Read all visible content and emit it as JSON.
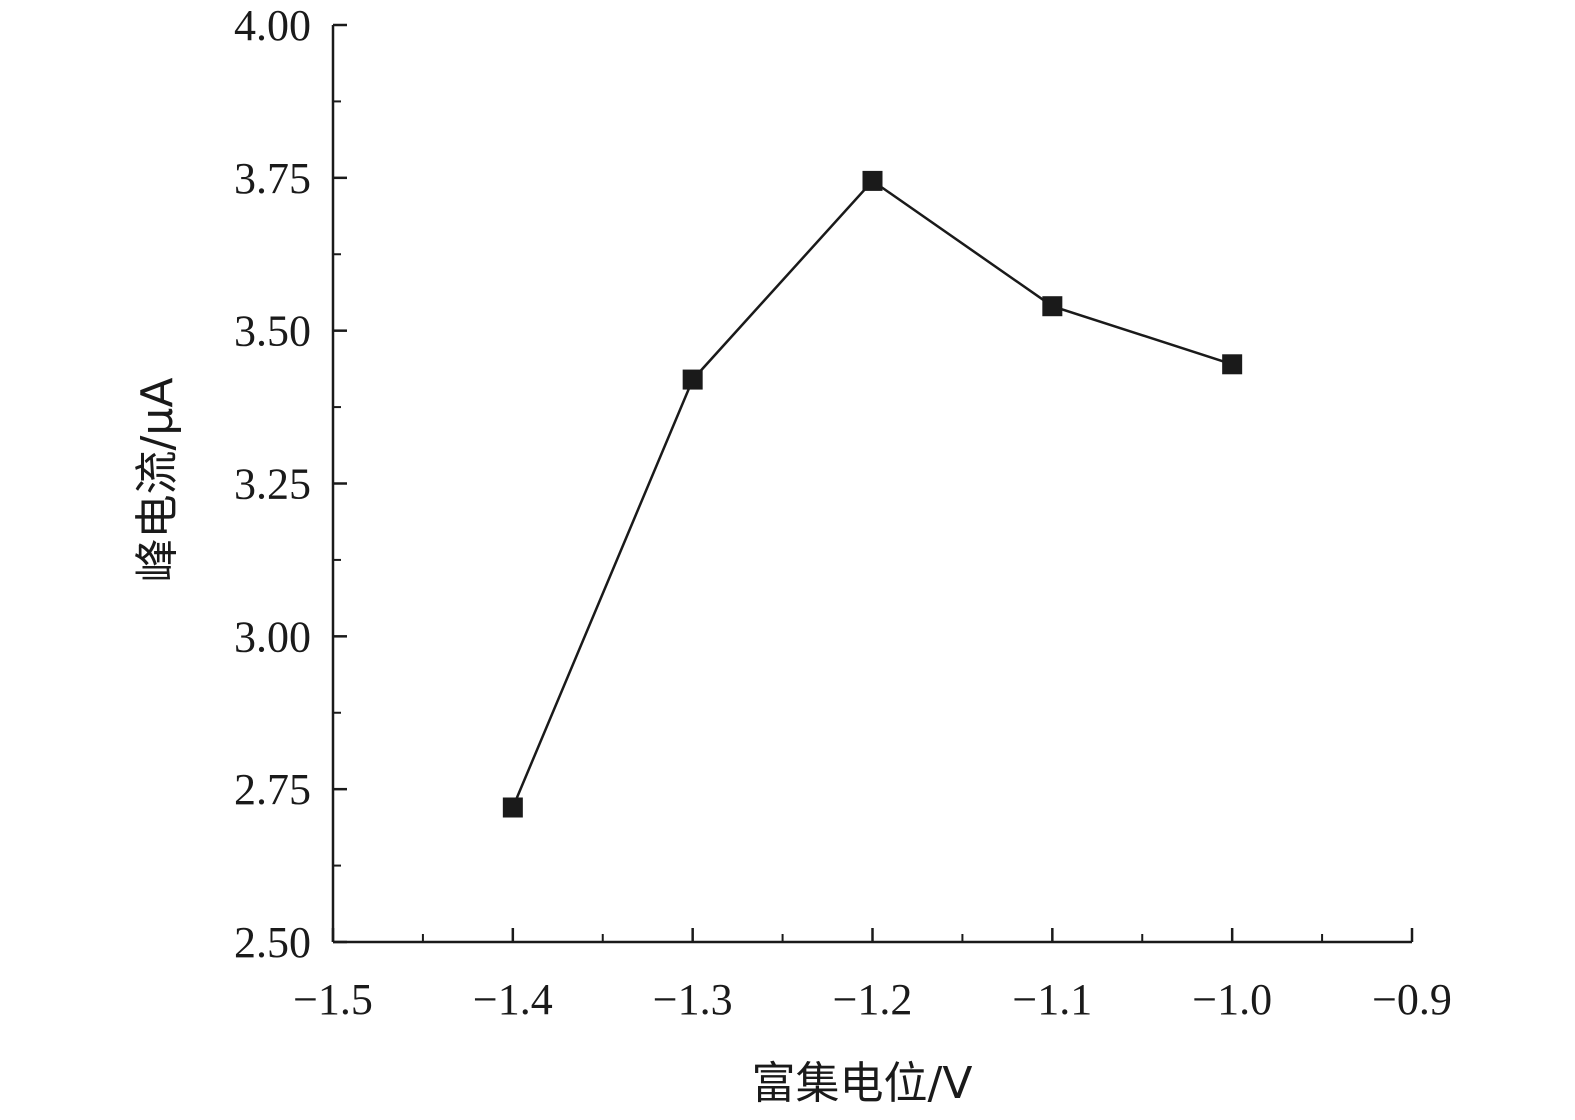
{
  "chart_data": {
    "type": "line",
    "title": "",
    "xlabel": "富集电位/V",
    "ylabel": "峰电流/μA",
    "xlim": [
      -1.5,
      -0.9
    ],
    "ylim": [
      2.5,
      4.0
    ],
    "x_ticks": [
      -1.5,
      -1.4,
      -1.3,
      -1.2,
      -1.1,
      -1.0,
      -0.9
    ],
    "x_tick_labels": [
      "−1.5",
      "−1.4",
      "−1.3",
      "−1.2",
      "−1.1",
      "−1.0",
      "−0.9"
    ],
    "y_ticks": [
      2.5,
      2.75,
      3.0,
      3.25,
      3.5,
      3.75,
      4.0
    ],
    "y_tick_labels": [
      "2.50",
      "2.75",
      "3.00",
      "3.25",
      "3.50",
      "3.75",
      "4.00"
    ],
    "x_minor_ticks": [
      -1.45,
      -1.35,
      -1.25,
      -1.15,
      -1.05,
      -0.95
    ],
    "y_minor_ticks": [
      2.625,
      2.875,
      3.125,
      3.375,
      3.625,
      3.875
    ],
    "grid": false,
    "legend": "none",
    "marker": "square",
    "colors": {
      "line": "#1a1a1a",
      "marker": "#1a1a1a",
      "axis": "#1a1a1a"
    },
    "series": [
      {
        "x": [
          -1.4,
          -1.3,
          -1.2,
          -1.1,
          -1.0
        ],
        "y": [
          2.72,
          3.42,
          3.745,
          3.54,
          3.445
        ]
      }
    ]
  }
}
